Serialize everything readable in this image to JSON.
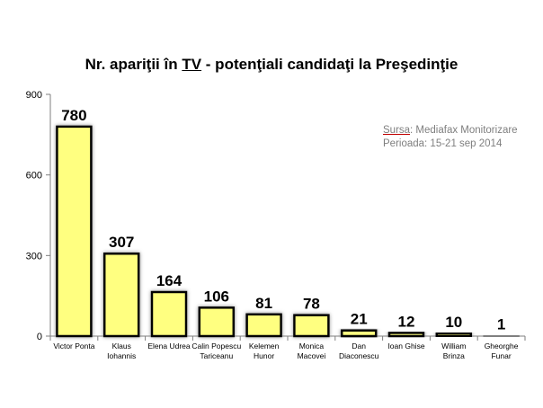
{
  "title": {
    "prefix": "Nr. apariţii în ",
    "underlined": "TV",
    "suffix": " - potenţiali candidaţi la Preşedinţie"
  },
  "source": {
    "label": "Sursa",
    "text": ": Mediafax Monitorizare",
    "period": "Perioada: 15-21 sep 2014"
  },
  "colors": {
    "bar_fill": "#ffff80",
    "bar_stroke": "#000000",
    "bar_glow": "#9a9a9a",
    "axis": "#7f7f7f"
  },
  "chart_data": {
    "type": "bar",
    "title": "Nr. apariţii în TV - potenţiali candidaţi la Preşedinţie",
    "categories": [
      [
        "Victor Ponta"
      ],
      [
        "Klaus",
        "Iohannis"
      ],
      [
        "Elena Udrea"
      ],
      [
        "Calin Popescu",
        "Tariceanu"
      ],
      [
        "Kelemen",
        "Hunor"
      ],
      [
        "Monica",
        "Macovei"
      ],
      [
        "Dan",
        "Diaconescu"
      ],
      [
        "Ioan Ghise"
      ],
      [
        "William",
        "Brinza"
      ],
      [
        "Gheorghe",
        "Funar"
      ]
    ],
    "values": [
      780,
      307,
      164,
      106,
      81,
      78,
      21,
      12,
      10,
      1
    ],
    "ylim": [
      0,
      900
    ],
    "yticks": [
      0,
      300,
      600,
      900
    ],
    "grid": false,
    "legend": "none"
  }
}
